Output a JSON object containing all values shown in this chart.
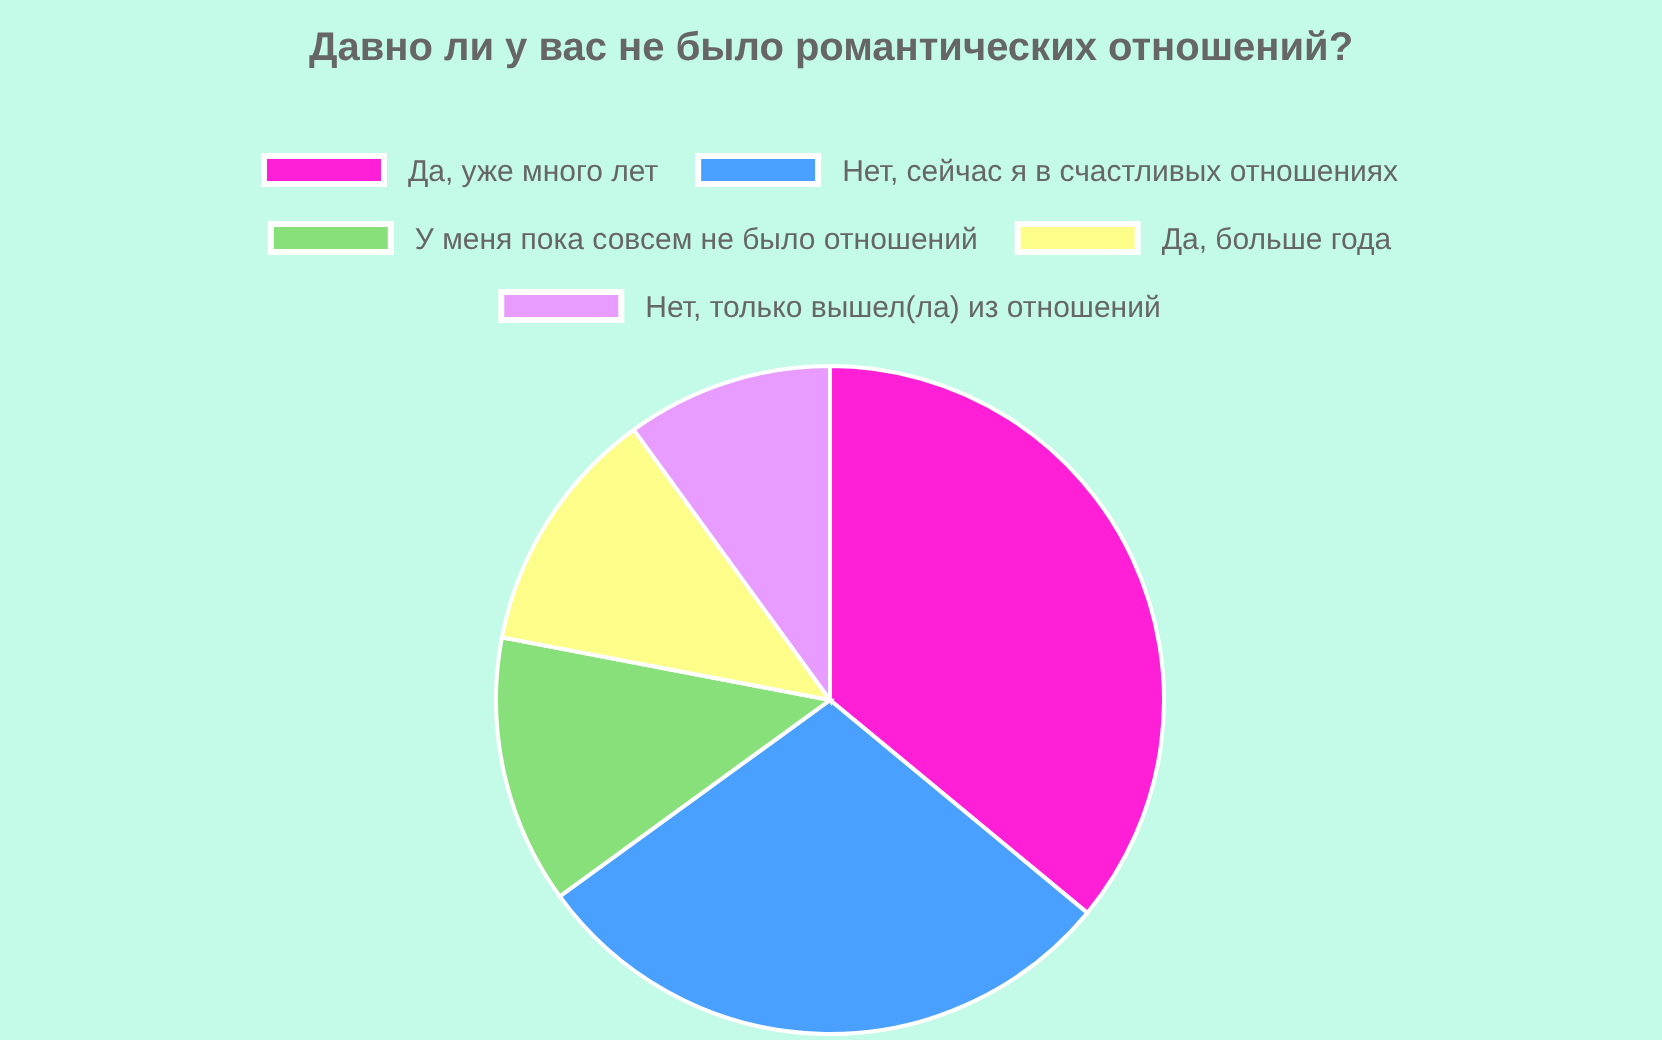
{
  "chart_data": {
    "type": "pie",
    "title": "Давно ли у вас не было романтических отношений?",
    "categories": [
      "Да, уже много лет",
      "Нет, сейчас я в счастливых отношениях",
      "У меня пока совсем не было отношений",
      "Да, больше года",
      "Нет, только вышел(ла) из отношений"
    ],
    "values": [
      36,
      29,
      13,
      12,
      10
    ],
    "colors": [
      "#ff1fd6",
      "#4aa0ff",
      "#88e07a",
      "#fdfd8a",
      "#e89cff"
    ],
    "legend": "top"
  }
}
